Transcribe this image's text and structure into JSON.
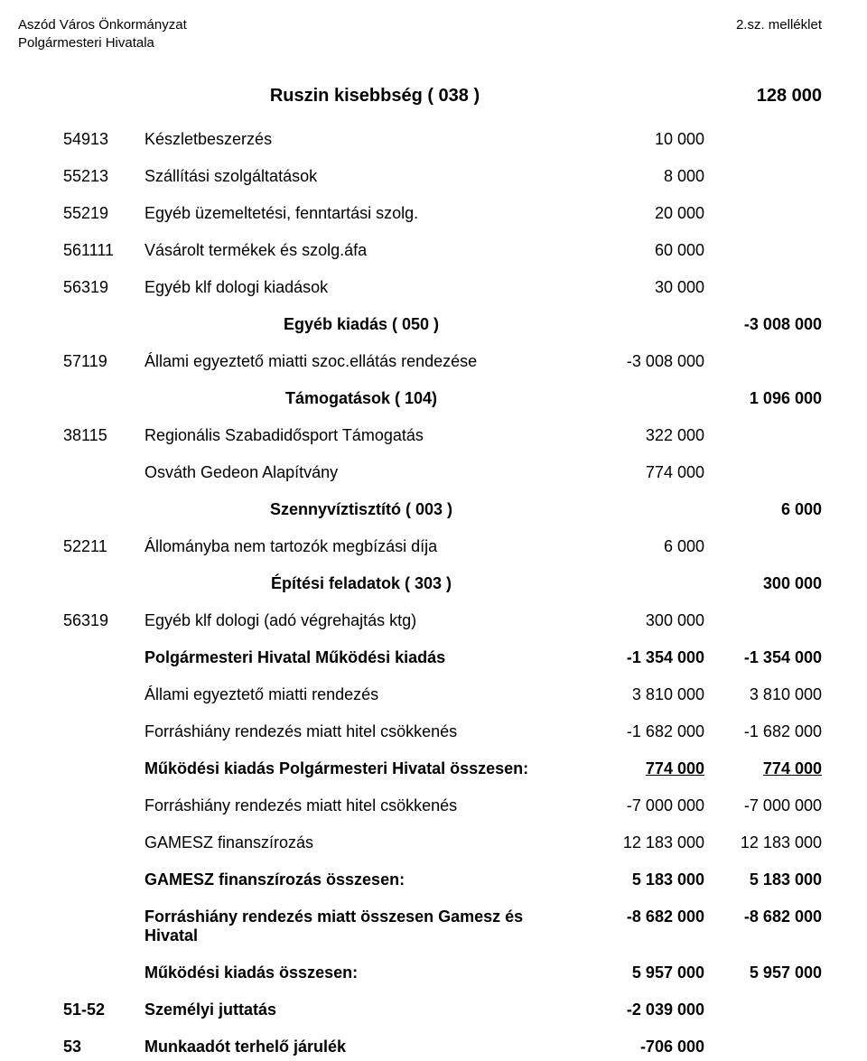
{
  "header": {
    "org_line1": "Aszód Város Önkormányzat",
    "org_line2": "Polgármesteri Hivatala",
    "right": "2.sz. melléklet"
  },
  "title": {
    "text": "Ruszin kisebbség ( 038 )",
    "value": "128 000"
  },
  "rows": [
    {
      "type": "item",
      "code": "54913",
      "desc": "Készletbeszerzés",
      "v1": "10 000",
      "v2": ""
    },
    {
      "type": "item",
      "code": "55213",
      "desc": "Szállítási szolgáltatások",
      "v1": "8 000",
      "v2": ""
    },
    {
      "type": "item",
      "code": "55219",
      "desc": "Egyéb üzemeltetési, fenntartási szolg.",
      "v1": "20 000",
      "v2": ""
    },
    {
      "type": "item",
      "code": "561111",
      "desc": "Vásárolt termékek és szolg.áfa",
      "v1": "60 000",
      "v2": ""
    },
    {
      "type": "item",
      "code": "56319",
      "desc": "Egyéb klf dologi kiadások",
      "v1": "30 000",
      "v2": ""
    },
    {
      "type": "section-center",
      "code": "",
      "desc": "Egyéb kiadás ( 050 )",
      "v1": "",
      "v2": "-3 008 000"
    },
    {
      "type": "item",
      "code": "57119",
      "desc": "Állami egyeztető miatti szoc.ellátás rendezése",
      "v1": "-3 008 000",
      "v2": ""
    },
    {
      "type": "section-center",
      "code": "",
      "desc": "Támogatások  ( 104)",
      "v1": "",
      "v2": "1 096 000"
    },
    {
      "type": "item",
      "code": "38115",
      "desc": "Regionális Szabadidősport Támogatás",
      "v1": "322 000",
      "v2": ""
    },
    {
      "type": "item",
      "code": "",
      "desc": "Osváth Gedeon Alapítvány",
      "v1": "774 000",
      "v2": ""
    },
    {
      "type": "section-center",
      "code": "",
      "desc": "Szennyvíztisztító ( 003 )",
      "v1": "",
      "v2": "6 000"
    },
    {
      "type": "item",
      "code": "52211",
      "desc": "Állományba nem tartozók megbízási díja",
      "v1": "6 000",
      "v2": ""
    },
    {
      "type": "section-center",
      "code": "",
      "desc": "Építési feladatok ( 303 )",
      "v1": "",
      "v2": "300 000"
    },
    {
      "type": "item",
      "code": "56319",
      "desc": "Egyéb klf dologi (adó végrehajtás ktg)",
      "v1": "300 000",
      "v2": ""
    },
    {
      "type": "bold-all",
      "code": "",
      "desc": "Polgármesteri Hivatal Működési kiadás",
      "v1": "-1 354 000",
      "v2": "-1 354 000"
    },
    {
      "type": "item",
      "code": "",
      "desc": "Állami egyeztető miatti rendezés",
      "v1": "3 810 000",
      "v2": "3 810 000"
    },
    {
      "type": "item",
      "code": "",
      "desc": "Forráshiány rendezés miatt hitel csökkenés",
      "v1": "-1 682 000",
      "v2": "-1 682 000"
    },
    {
      "type": "bold-all underline-vals",
      "code": "",
      "desc": "Működési kiadás Polgármesteri Hivatal összesen:",
      "v1": "774 000",
      "v2": "774 000"
    },
    {
      "type": "item",
      "code": "",
      "desc": "Forráshiány rendezés miatt hitel csökkenés",
      "v1": "-7 000 000",
      "v2": "-7 000 000"
    },
    {
      "type": "item",
      "code": "",
      "desc": "GAMESZ finanszírozás",
      "v1": "12 183 000",
      "v2": "12 183 000"
    },
    {
      "type": "bold-all",
      "code": "",
      "desc": "GAMESZ finanszírozás összesen:",
      "v1": "5 183 000",
      "v2": "5 183 000"
    },
    {
      "type": "bold-all",
      "code": "",
      "desc": "Forráshiány rendezés miatt összesen Gamesz és Hivatal",
      "v1": "-8 682 000",
      "v2": "-8 682 000"
    },
    {
      "type": "bold-all",
      "code": "",
      "desc": "Működési kiadás összesen:",
      "v1": "5 957 000",
      "v2": "5 957 000"
    },
    {
      "type": "bold-all",
      "code": "51-52",
      "desc": "Személyi juttatás",
      "v1": "-2 039 000",
      "v2": ""
    },
    {
      "type": "bold-all",
      "code": "53",
      "desc": "Munkaadót terhelő járulék",
      "v1": "-706 000",
      "v2": ""
    }
  ]
}
